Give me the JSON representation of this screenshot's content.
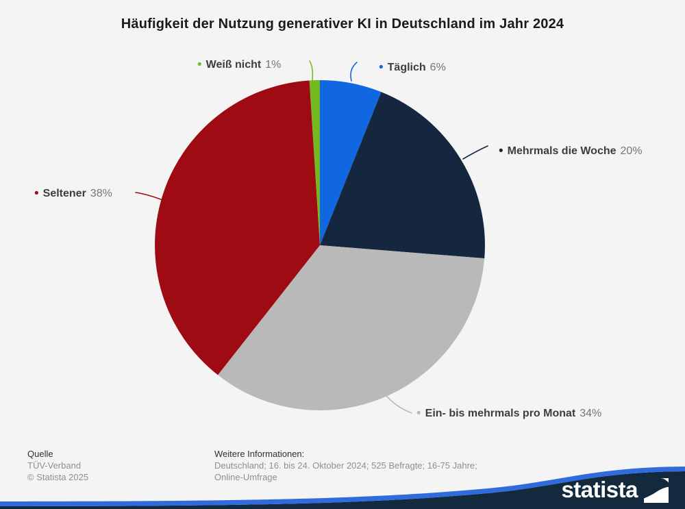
{
  "page": {
    "background_color": "#f4f4f4"
  },
  "chart_data": {
    "type": "pie",
    "title": "Häufigkeit der Nutzung generativer KI in Deutschland im Jahr 2024",
    "unit": "%",
    "direction": "clockwise",
    "start_angle_deg": 0,
    "legend_position": "callout-labels",
    "slices": [
      {
        "label": "Täglich",
        "value": 6,
        "value_label": "6%",
        "color": "#1166e2"
      },
      {
        "label": "Mehrmals die Woche",
        "value": 20,
        "value_label": "20%",
        "color": "#14273f"
      },
      {
        "label": "Ein- bis mehrmals pro Monat",
        "value": 34,
        "value_label": "34%",
        "color": "#b9b9b9"
      },
      {
        "label": "Seltener",
        "value": 38,
        "value_label": "38%",
        "color": "#9e0b13"
      },
      {
        "label": "Weiß nicht",
        "value": 1,
        "value_label": "1%",
        "color": "#73ba21"
      }
    ]
  },
  "footer": {
    "source": {
      "heading": "Quelle",
      "line1": "TÜV-Verband",
      "line2": "© Statista 2025"
    },
    "info": {
      "heading": "Weitere Informationen:",
      "text": "Deutschland; 16. bis 24. Oktober 2024; 525 Befragte; 16-75 Jahre; Online-Umfrage"
    },
    "brand": {
      "logo_text": "statista",
      "wave_blue": "#2f6bdc",
      "wave_navy": "#12293e"
    }
  }
}
